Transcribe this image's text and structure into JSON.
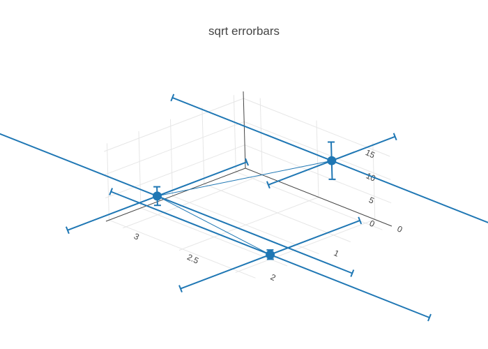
{
  "chart_data": {
    "type": "scatter3d",
    "title": "sqrt errorbars",
    "mode": "lines+markers",
    "color": "#1f77b4",
    "points": [
      {
        "x": 1,
        "y": 2,
        "z": 16
      },
      {
        "x": 2,
        "y": 3,
        "z": 4
      },
      {
        "x": 2,
        "y": 2,
        "z": 1
      }
    ],
    "axes": {
      "x": {
        "range": [
          0.35,
          2.55
        ],
        "tickvals": [
          0,
          1,
          2
        ],
        "ticktext": [
          "0",
          "1",
          "2"
        ]
      },
      "y": {
        "range": [
          1.85,
          3.15
        ],
        "tickvals": [
          2.5,
          3
        ],
        "ticktext": [
          "2.5",
          "3"
        ]
      },
      "z": {
        "range": [
          0,
          16.5
        ],
        "tickvals": [
          0,
          5,
          10,
          15
        ],
        "ticktext": [
          "0",
          "5",
          "10",
          "15"
        ]
      }
    },
    "error_x": {
      "type": "sqrt"
    },
    "error_y": {
      "type": "sqrt"
    },
    "error_z": {
      "type": "sqrt"
    }
  }
}
